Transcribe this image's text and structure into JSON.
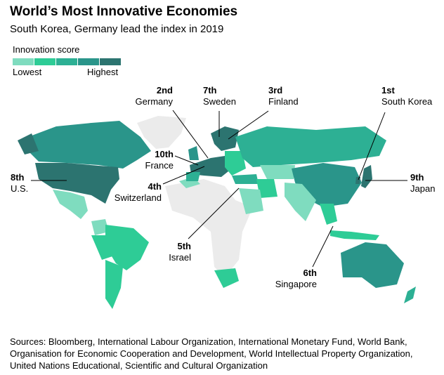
{
  "header": {
    "title": "World’s Most Innovative Economies",
    "subtitle": "South Korea, Germany lead the index in 2019"
  },
  "legend": {
    "title": "Innovation score",
    "low": "Lowest",
    "high": "Highest",
    "colors": [
      "#7fdcbf",
      "#2ecc96",
      "#2db094",
      "#2a958a",
      "#2c7470"
    ]
  },
  "no_data_color": "#ebebeb",
  "rankings": [
    {
      "rank": "1st",
      "country": "South Korea"
    },
    {
      "rank": "2nd",
      "country": "Germany"
    },
    {
      "rank": "3rd",
      "country": "Finland"
    },
    {
      "rank": "4th",
      "country": "Switzerland"
    },
    {
      "rank": "5th",
      "country": "Israel"
    },
    {
      "rank": "6th",
      "country": "Singapore"
    },
    {
      "rank": "7th",
      "country": "Sweden"
    },
    {
      "rank": "8th",
      "country": "U.S."
    },
    {
      "rank": "9th",
      "country": "Japan"
    },
    {
      "rank": "10th",
      "country": "France"
    }
  ],
  "footer": {
    "sources": "Sources: Bloomberg, International Labour Organization, International Monetary Fund, World Bank, Organisation for Economic Cooperation and Development, World Intellectual Property Organization, United Nations Educational, Scientific and Cultural Organization"
  }
}
